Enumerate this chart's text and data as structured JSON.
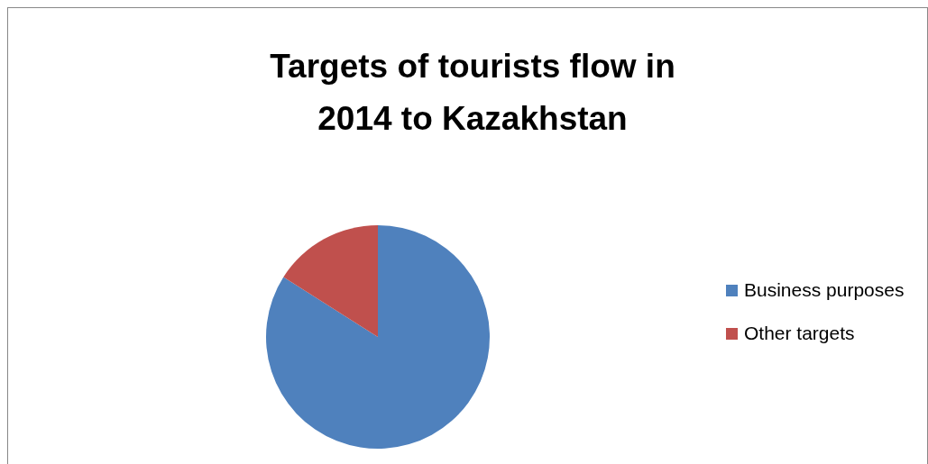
{
  "chart_data": {
    "type": "pie",
    "title": "Targets of tourists flow in 2014 to Kazakhstan",
    "categories": [
      "Business purposes",
      "Other targets"
    ],
    "values": [
      84,
      16
    ],
    "colors": [
      "#4f81bd",
      "#c0504d"
    ],
    "legend": "right"
  }
}
